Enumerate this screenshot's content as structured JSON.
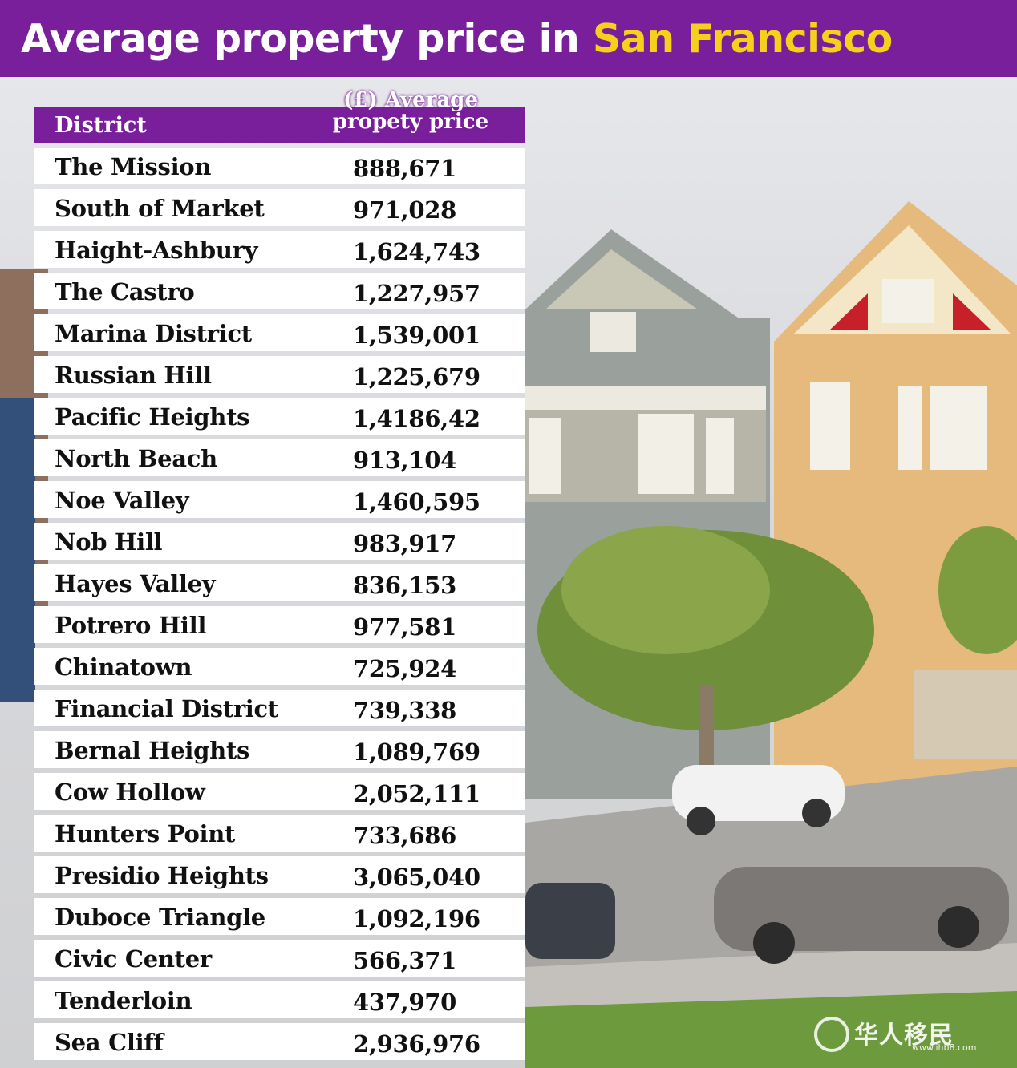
{
  "title": {
    "prefix": "Average property price in",
    "city": "San Francisco"
  },
  "table": {
    "header": {
      "district": "District",
      "price": "(£) Average propety price"
    },
    "rows": [
      {
        "district": "The Mission",
        "price": "888,671"
      },
      {
        "district": "South of Market",
        "price": "971,028"
      },
      {
        "district": "Haight-Ashbury",
        "price": "1,624,743"
      },
      {
        "district": "The Castro",
        "price": "1,227,957"
      },
      {
        "district": "Marina District",
        "price": "1,539,001"
      },
      {
        "district": "Russian Hill",
        "price": "1,225,679"
      },
      {
        "district": "Pacific Heights",
        "price": "1,4186,42"
      },
      {
        "district": "North Beach",
        "price": "913,104"
      },
      {
        "district": "Noe Valley",
        "price": "1,460,595"
      },
      {
        "district": "Nob Hill",
        "price": "983,917"
      },
      {
        "district": "Hayes Valley",
        "price": "836,153"
      },
      {
        "district": "Potrero Hill",
        "price": "977,581"
      },
      {
        "district": "Chinatown",
        "price": "725,924"
      },
      {
        "district": "Financial District",
        "price": "739,338"
      },
      {
        "district": "Bernal Heights",
        "price": "1,089,769"
      },
      {
        "district": "Cow Hollow",
        "price": "2,052,111"
      },
      {
        "district": "Hunters Point",
        "price": "733,686"
      },
      {
        "district": "Presidio Heights",
        "price": "3,065,040"
      },
      {
        "district": "Duboce Triangle",
        "price": "1,092,196"
      },
      {
        "district": "Civic Center",
        "price": "566,371"
      },
      {
        "district": "Tenderloin",
        "price": "437,970"
      },
      {
        "district": "Sea Cliff",
        "price": "2,936,976"
      }
    ]
  },
  "watermark": {
    "text": "华人移民",
    "url": "www.ihb8.com"
  },
  "colors": {
    "banner": "#7a1f9c",
    "city_highlight": "#f6d11b",
    "row_bg": "#ffffff"
  }
}
